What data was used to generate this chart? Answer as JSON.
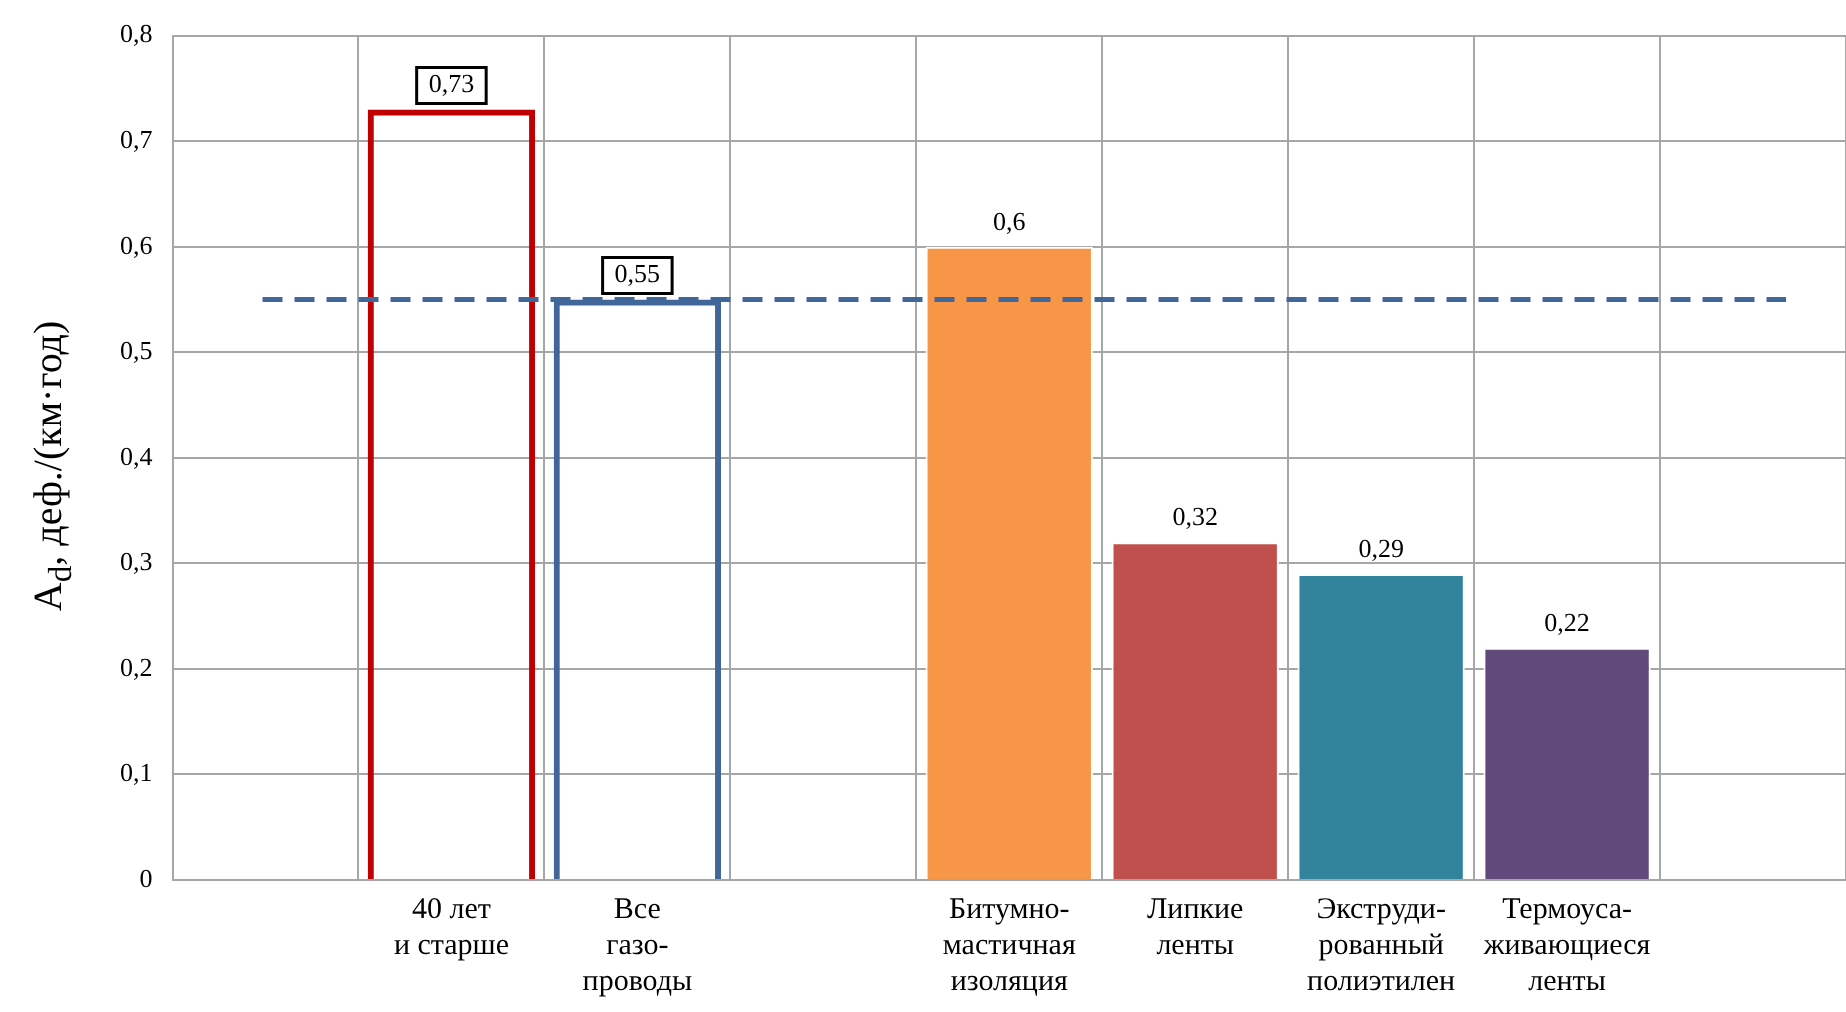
{
  "chart_data": {
    "type": "bar",
    "ylabel": "A$_{d}$, деф./(км·год)",
    "categories": [
      null,
      "40 лет\nи старше",
      "Все\nгазо-\nпроводы",
      null,
      "Битумно-\nмастичная\nизоляция",
      "Липкие\nленты",
      "Экструди-\nрованный\nполиэтилен",
      "Термоуса-\nживающиеся\nленты",
      null
    ],
    "series": [
      {
        "colors": [
          null,
          "#c00000",
          "#41679a",
          null,
          null,
          null,
          null,
          null,
          null
        ],
        "values": [
          null,
          0.73,
          0.55,
          null,
          null,
          null,
          null,
          null,
          null
        ],
        "value_labels": [
          null,
          "0,73",
          "0,55",
          null,
          null,
          null,
          null,
          null,
          null
        ]
      },
      {
        "colors": [
          null,
          null,
          null,
          null,
          "#f79646",
          "#c0504d",
          "#31849b",
          "#604a7b",
          null
        ],
        "values": [
          null,
          null,
          null,
          null,
          0.6,
          0.32,
          0.29,
          0.22,
          null
        ],
        "value_labels": [
          null,
          null,
          null,
          null,
          "0,6",
          "0,32",
          "0,29",
          "0,22",
          null
        ]
      }
    ],
    "ylim": [
      0,
      0.8
    ],
    "yticks": [
      0,
      {
        "value": 0.1,
        "label": "0,1"
      },
      {
        "value": 0.2,
        "label": "0,2"
      },
      {
        "value": 0.3,
        "label": "0,3"
      },
      {
        "value": 0.4,
        "label": "0,4"
      },
      {
        "value": 0.5,
        "label": "0,5"
      },
      {
        "value": 0.6,
        "label": "0,6"
      },
      {
        "value": 0.7,
        "label": "0,7"
      },
      {
        "value": 0.8,
        "label": "0,8"
      }
    ],
    "ref_lines": [
      {
        "axis": "y",
        "value": 0.55,
        "color": "#41679a",
        "line_style": "dashed"
      }
    ],
    "grid": true,
    "legend": false
  }
}
